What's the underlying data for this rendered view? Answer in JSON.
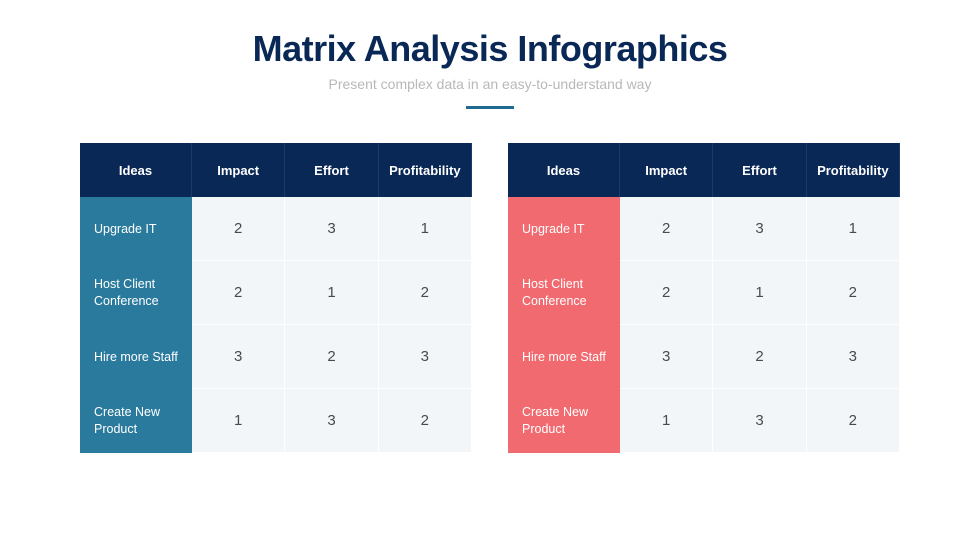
{
  "title": "Matrix Analysis Infographics",
  "subtitle": "Present complex data in an easy-to-understand way",
  "colors": {
    "header_bg": "#0a2856",
    "teal": "#2a7a9e",
    "coral": "#f16a6f",
    "cell_bg": "#f3f6f9",
    "divider": "#1f6a8f",
    "title_color": "#0a2856",
    "subtitle_color": "#b8b8b8",
    "cell_text": "#4a4a4a"
  },
  "columns": [
    "Ideas",
    "Impact",
    "Effort",
    "Profitability"
  ],
  "rows": [
    {
      "label": "Upgrade IT",
      "values": [
        "2",
        "3",
        "1"
      ]
    },
    {
      "label": "Host Client Conference",
      "values": [
        "2",
        "1",
        "2"
      ]
    },
    {
      "label": "Hire more Staff",
      "values": [
        "3",
        "2",
        "3"
      ]
    },
    {
      "label": "Create New Product",
      "values": [
        "1",
        "3",
        "2"
      ]
    }
  ],
  "tables": [
    {
      "accent": "#2a7a9e"
    },
    {
      "accent": "#f16a6f"
    }
  ]
}
